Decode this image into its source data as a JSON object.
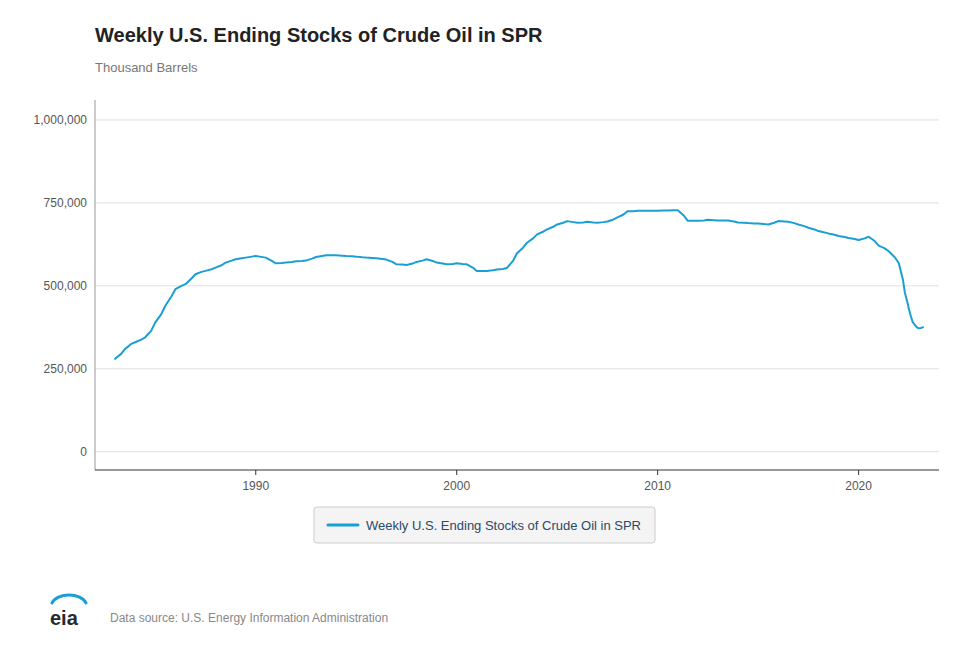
{
  "chart_data": {
    "type": "line",
    "title": "Weekly U.S. Ending Stocks of Crude Oil in SPR",
    "y_label": "Thousand Barrels",
    "annotations": [
      "eia",
      "Data source: U.S. Energy Information Administration"
    ],
    "x": [
      1983.0,
      1983.3,
      1983.5,
      1983.8,
      1984.0,
      1984.3,
      1984.5,
      1984.8,
      1985.0,
      1985.3,
      1985.5,
      1985.8,
      1986.0,
      1986.3,
      1986.5,
      1986.8,
      1987.0,
      1987.3,
      1987.5,
      1987.8,
      1988.0,
      1988.3,
      1988.5,
      1988.8,
      1989.0,
      1989.3,
      1989.5,
      1989.8,
      1990.0,
      1990.2,
      1990.5,
      1990.8,
      1991.0,
      1991.3,
      1991.5,
      1991.8,
      1992.0,
      1992.3,
      1992.5,
      1992.8,
      1993.0,
      1993.3,
      1993.5,
      1993.8,
      1994.0,
      1994.3,
      1994.5,
      1994.8,
      1995.0,
      1995.3,
      1995.5,
      1995.8,
      1996.0,
      1996.3,
      1996.5,
      1996.8,
      1997.0,
      1997.3,
      1997.5,
      1997.8,
      1998.0,
      1998.3,
      1998.5,
      1998.8,
      1999.0,
      1999.3,
      1999.5,
      1999.8,
      2000.0,
      2000.3,
      2000.5,
      2000.8,
      2001.0,
      2001.3,
      2001.5,
      2001.8,
      2002.0,
      2002.3,
      2002.5,
      2002.8,
      2003.0,
      2003.3,
      2003.5,
      2003.8,
      2004.0,
      2004.3,
      2004.5,
      2004.8,
      2005.0,
      2005.3,
      2005.5,
      2005.8,
      2006.0,
      2006.3,
      2006.5,
      2006.8,
      2007.0,
      2007.3,
      2007.5,
      2007.8,
      2008.0,
      2008.3,
      2008.5,
      2008.8,
      2009.0,
      2009.3,
      2009.5,
      2009.8,
      2010.0,
      2010.3,
      2010.5,
      2010.8,
      2011.0,
      2011.3,
      2011.5,
      2011.8,
      2012.0,
      2012.3,
      2012.5,
      2012.8,
      2013.0,
      2013.3,
      2013.5,
      2013.8,
      2014.0,
      2014.3,
      2014.5,
      2014.8,
      2015.0,
      2015.3,
      2015.5,
      2015.8,
      2016.0,
      2016.3,
      2016.5,
      2016.8,
      2017.0,
      2017.3,
      2017.5,
      2017.8,
      2018.0,
      2018.3,
      2018.5,
      2018.8,
      2019.0,
      2019.3,
      2019.5,
      2019.8,
      2020.0,
      2020.3,
      2020.5,
      2020.8,
      2021.0,
      2021.3,
      2021.5,
      2021.8,
      2022.0,
      2022.2,
      2022.3,
      2022.45,
      2022.5,
      2022.6,
      2022.7,
      2022.8,
      2022.9,
      2023.0,
      2023.1,
      2023.15,
      2023.2
    ],
    "series": [
      {
        "name": "Weekly U.S. Ending Stocks of Crude Oil in SPR",
        "color": "#1a9fd4",
        "values": [
          280000,
          295000,
          310000,
          325000,
          330000,
          338000,
          345000,
          365000,
          390000,
          415000,
          440000,
          468000,
          490000,
          500000,
          505000,
          522000,
          535000,
          542000,
          545000,
          550000,
          555000,
          562000,
          570000,
          576000,
          580000,
          583000,
          585000,
          588000,
          590000,
          588000,
          585000,
          575000,
          568000,
          569000,
          570000,
          572000,
          574000,
          575000,
          576000,
          582000,
          587000,
          590000,
          592000,
          592000,
          592000,
          591000,
          590000,
          589000,
          588000,
          586000,
          585000,
          584000,
          583000,
          581000,
          579000,
          572000,
          565000,
          564000,
          563000,
          567000,
          572000,
          576000,
          580000,
          575000,
          570000,
          567000,
          565000,
          566000,
          568000,
          566000,
          565000,
          555000,
          545000,
          545000,
          545000,
          547000,
          549000,
          551000,
          554000,
          575000,
          598000,
          615000,
          630000,
          643000,
          655000,
          663000,
          670000,
          678000,
          685000,
          690000,
          695000,
          692000,
          690000,
          691000,
          693000,
          691000,
          690000,
          692000,
          694000,
          700000,
          706000,
          715000,
          725000,
          725000,
          726000,
          726000,
          726000,
          726000,
          726000,
          727000,
          727000,
          728000,
          728000,
          712000,
          696000,
          696000,
          696000,
          697000,
          699000,
          698000,
          697000,
          697000,
          697000,
          694000,
          691000,
          690000,
          689000,
          688000,
          688000,
          686000,
          685000,
          690000,
          695000,
          694000,
          693000,
          689000,
          685000,
          680000,
          675000,
          670000,
          665000,
          661000,
          658000,
          654000,
          650000,
          647000,
          644000,
          641000,
          638000,
          643000,
          648000,
          635000,
          621000,
          613000,
          604000,
          586000,
          568000,
          520000,
          480000,
          445000,
          430000,
          408000,
          390000,
          382000,
          375000,
          372000,
          373000,
          374000,
          375000
        ]
      }
    ],
    "xlim": [
      1982.0,
      2024.0
    ],
    "xticks": [
      1990,
      2000,
      2010,
      2020
    ],
    "ylim": [
      -55000,
      1060000
    ],
    "yticks": [
      0,
      {
        "value": 250000,
        "label": "250,000"
      },
      {
        "value": 500000,
        "label": "500,000"
      },
      {
        "value": 750000,
        "label": "750,000"
      },
      {
        "value": 1000000,
        "label": "1,000,000"
      }
    ],
    "grid": true,
    "legend": "bottom"
  }
}
